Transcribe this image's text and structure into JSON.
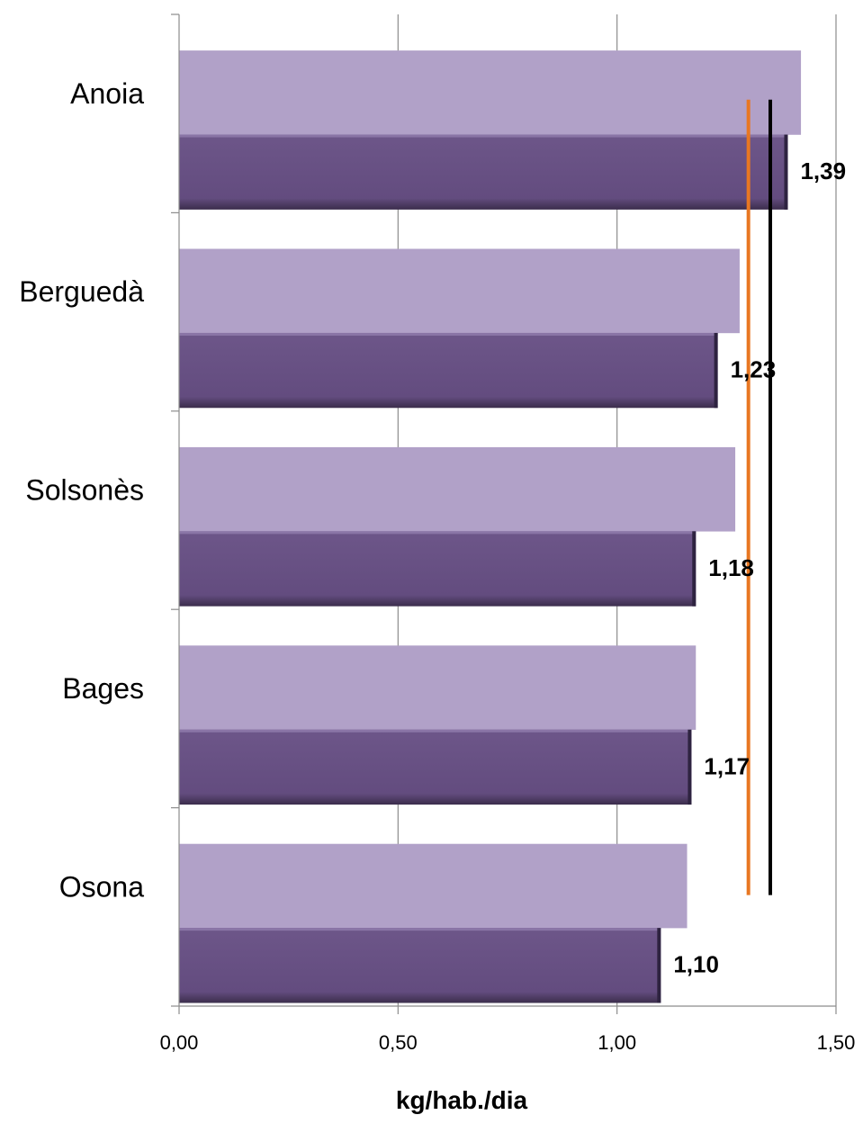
{
  "chart_data": {
    "type": "bar",
    "orientation": "horizontal",
    "categories": [
      "Anoia",
      "Berguedà",
      "Solsonès",
      "Bages",
      "Osona"
    ],
    "series": [
      {
        "values": [
          1.42,
          1.28,
          1.27,
          1.18,
          1.16
        ],
        "color": "#b1a1c8"
      },
      {
        "values": [
          1.39,
          1.23,
          1.18,
          1.17,
          1.1
        ],
        "color": "#675084"
      }
    ],
    "data_labels": [
      "1,39",
      "1,23",
      "1,18",
      "1,17",
      "1,10"
    ],
    "reference_lines": [
      {
        "value": 1.3,
        "color": "#e87722"
      },
      {
        "value": 1.35,
        "color": "#000000"
      }
    ],
    "xlabel": "kg/hab./dia",
    "xlim": [
      0,
      1.5
    ],
    "x_ticks": [
      0,
      0.5,
      1.0,
      1.5
    ],
    "x_tick_labels": [
      "0,00",
      "0,50",
      "1,00",
      "1,50"
    ],
    "grid": "vertical"
  }
}
